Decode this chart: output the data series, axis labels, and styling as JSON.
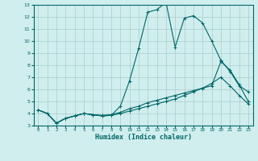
{
  "xlabel": "Humidex (Indice chaleur)",
  "ylabel": "",
  "bg_color": "#d0eeee",
  "grid_color": "#aacccc",
  "line_color": "#006666",
  "xlim": [
    -0.5,
    23.5
  ],
  "ylim": [
    3,
    13
  ],
  "xticks": [
    0,
    1,
    2,
    3,
    4,
    5,
    6,
    7,
    8,
    9,
    10,
    11,
    12,
    13,
    14,
    15,
    16,
    17,
    18,
    19,
    20,
    21,
    22,
    23
  ],
  "yticks": [
    3,
    4,
    5,
    6,
    7,
    8,
    9,
    10,
    11,
    12,
    13
  ],
  "line1_x": [
    0,
    1,
    2,
    3,
    4,
    5,
    6,
    7,
    8,
    9,
    10,
    11,
    12,
    13,
    14,
    15,
    16,
    17,
    18,
    19,
    20,
    21,
    22,
    23
  ],
  "line1_y": [
    4.3,
    4.0,
    3.2,
    3.6,
    3.8,
    4.0,
    3.9,
    3.8,
    3.85,
    4.6,
    6.7,
    9.4,
    12.4,
    12.6,
    13.2,
    9.5,
    11.9,
    12.1,
    11.5,
    10.0,
    8.4,
    7.5,
    6.3,
    5.8
  ],
  "line2_x": [
    0,
    1,
    2,
    3,
    4,
    5,
    6,
    7,
    8,
    9,
    10,
    11,
    12,
    13,
    14,
    15,
    16,
    17,
    18,
    19,
    20,
    21,
    22,
    23
  ],
  "line2_y": [
    4.3,
    4.0,
    3.2,
    3.6,
    3.8,
    4.0,
    3.9,
    3.8,
    3.85,
    4.0,
    4.2,
    4.4,
    4.6,
    4.8,
    5.0,
    5.2,
    5.5,
    5.8,
    6.1,
    6.5,
    7.0,
    6.3,
    5.5,
    4.8
  ],
  "line3_x": [
    0,
    1,
    2,
    3,
    4,
    5,
    6,
    7,
    8,
    9,
    10,
    11,
    12,
    13,
    14,
    15,
    16,
    17,
    18,
    19,
    20,
    21,
    22,
    23
  ],
  "line3_y": [
    4.3,
    4.0,
    3.2,
    3.6,
    3.8,
    4.0,
    3.9,
    3.85,
    3.9,
    4.1,
    4.4,
    4.6,
    4.9,
    5.1,
    5.3,
    5.5,
    5.7,
    5.9,
    6.1,
    6.3,
    8.3,
    7.6,
    6.4,
    5.0
  ]
}
